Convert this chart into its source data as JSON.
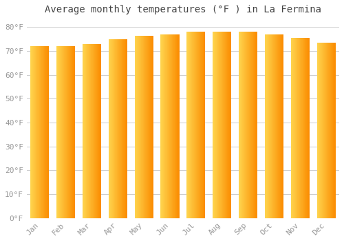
{
  "title": "Average monthly temperatures (°F ) in La Fermina",
  "months": [
    "Jan",
    "Feb",
    "Mar",
    "Apr",
    "May",
    "Jun",
    "Jul",
    "Aug",
    "Sep",
    "Oct",
    "Nov",
    "Dec"
  ],
  "values": [
    72,
    72,
    73,
    75,
    76.5,
    77,
    78,
    78,
    78,
    77,
    75.5,
    73.5
  ],
  "bar_color": "#FFA726",
  "bar_color_light": "#FFD54F",
  "bar_color_dark": "#FB8C00",
  "background_color": "#FFFFFF",
  "grid_color": "#CCCCCC",
  "ytick_labels": [
    "0°F",
    "10°F",
    "20°F",
    "30°F",
    "40°F",
    "50°F",
    "60°F",
    "70°F",
    "80°F"
  ],
  "ytick_values": [
    0,
    10,
    20,
    30,
    40,
    50,
    60,
    70,
    80
  ],
  "ylim": [
    0,
    83
  ],
  "title_fontsize": 10,
  "tick_fontsize": 8,
  "tick_color": "#999999",
  "title_color": "#444444",
  "font_family": "monospace"
}
